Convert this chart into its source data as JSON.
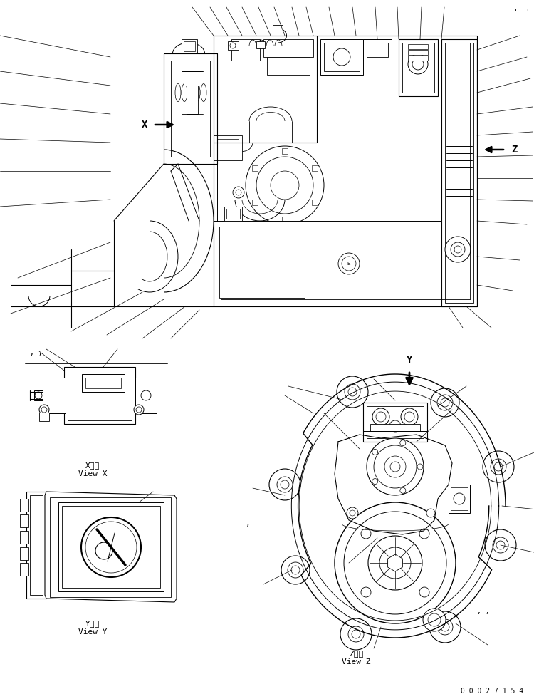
{
  "bg_color": "#ffffff",
  "line_color": "#000000",
  "fig_width": 7.5,
  "fig_height": 9.81,
  "dpi": 100,
  "doc_number": "0 0 0 2 7 1 5 4",
  "view_x_j": "X  視",
  "view_x_e": "View X",
  "view_y_j": "Y  視",
  "view_y_e": "View Y",
  "view_z_j": "Z  視",
  "view_z_e": "View Z"
}
